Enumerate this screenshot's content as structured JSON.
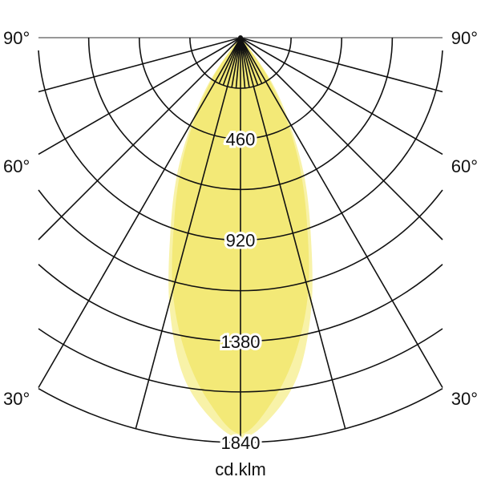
{
  "chart_data": {
    "type": "polar",
    "unit_label": "cd.klm",
    "radial_max": 1840,
    "radial_grid_step": 230,
    "radial_tick_labels": [
      "460",
      "920",
      "1380",
      "1840"
    ],
    "radial_tick_values": [
      460,
      920,
      1380,
      1840
    ],
    "angle_tick_labels": {
      "left": [
        "90°",
        "60°",
        "30°"
      ],
      "right": [
        "90°",
        "60°",
        "30°"
      ]
    },
    "angle_tick_values": [
      90,
      60,
      30
    ],
    "major_angle_lines": [
      0,
      15,
      30,
      45,
      60,
      75,
      90
    ],
    "minor_angle_step": 5,
    "grid": true,
    "series": [
      {
        "angles": [
          0,
          5,
          10,
          15,
          20,
          25,
          30,
          35,
          40,
          45
        ],
        "values": [
          1820,
          1720,
          1540,
          1250,
          930,
          680,
          440,
          250,
          60,
          0
        ],
        "color": "#f8f2a8",
        "symmetric": true
      },
      {
        "angles": [
          0,
          5,
          10,
          15,
          20,
          25,
          30,
          35,
          40,
          45
        ],
        "values": [
          1800,
          1660,
          1450,
          1190,
          880,
          630,
          400,
          210,
          40,
          0
        ],
        "color": "#f3e977",
        "symmetric": true
      }
    ]
  }
}
